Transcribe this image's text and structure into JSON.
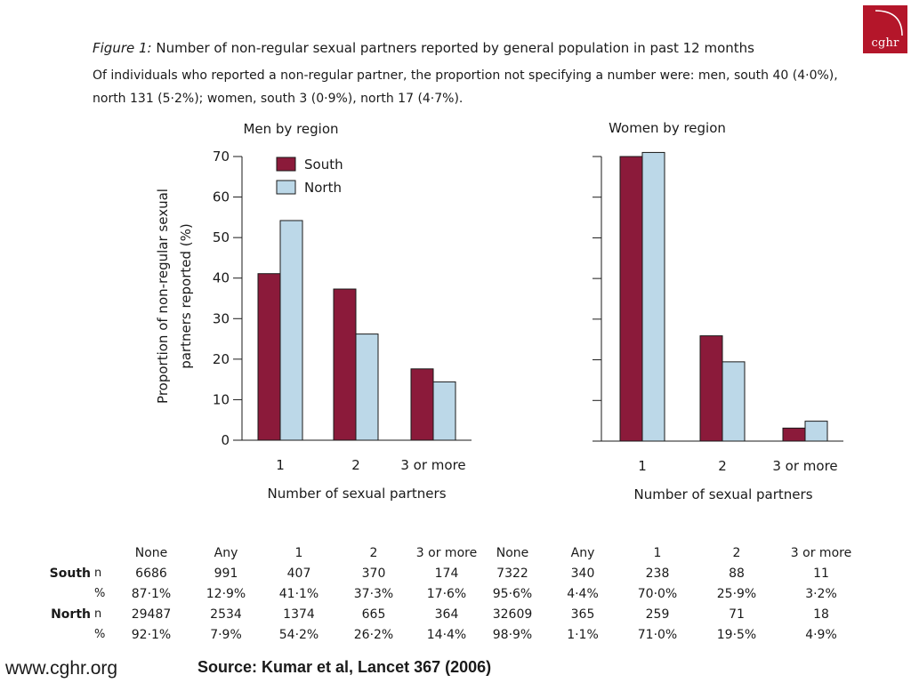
{
  "logo": {
    "text": "cghr"
  },
  "figure": {
    "label": "Figure 1:",
    "title": "Number of non-regular sexual partners reported by general population in past 12 months",
    "caption": "Of individuals who reported a non-regular partner, the proportion not specifying a number were: men, south 40 (4·0%), north 131 (5·2%); women, south 3 (0·9%), north 17 (4·7%)."
  },
  "chart_data": [
    {
      "type": "bar",
      "title": "Men by region",
      "xlabel": "Number of sexual partners",
      "ylabel": "Proportion of non-regular sexual partners reported (%)",
      "ylim": [
        0,
        70
      ],
      "yticks": [
        0,
        10,
        20,
        30,
        40,
        50,
        60,
        70
      ],
      "categories": [
        "1",
        "2",
        "3 or more"
      ],
      "legend": "top-left",
      "series": [
        {
          "name": "South",
          "color": "#8b1a3a",
          "values": [
            41.1,
            37.3,
            17.6
          ]
        },
        {
          "name": "North",
          "color": "#bcd8e8",
          "values": [
            54.2,
            26.2,
            14.4
          ]
        }
      ]
    },
    {
      "type": "bar",
      "title": "Women by region",
      "xlabel": "Number of sexual partners",
      "ylabel": "",
      "ylim": [
        0,
        70
      ],
      "yticks": [
        0,
        10,
        20,
        30,
        40,
        50,
        60,
        70
      ],
      "categories": [
        "1",
        "2",
        "3 or more"
      ],
      "series": [
        {
          "name": "South",
          "color": "#8b1a3a",
          "values": [
            70.0,
            25.9,
            3.2
          ]
        },
        {
          "name": "North",
          "color": "#bcd8e8",
          "values": [
            71.0,
            19.5,
            4.9
          ]
        }
      ]
    }
  ],
  "table": {
    "headers": [
      "None",
      "Any",
      "1",
      "2",
      "3 or more",
      "None",
      "Any",
      "1",
      "2",
      "3 or more"
    ],
    "rows": [
      {
        "region": "South",
        "marker": "n",
        "cells": [
          "6686",
          "991",
          "407",
          "370",
          "174",
          "7322",
          "340",
          "238",
          "88",
          "11"
        ]
      },
      {
        "region": "",
        "marker": "%",
        "cells": [
          "87·1%",
          "12·9%",
          "41·1%",
          "37·3%",
          "17·6%",
          "95·6%",
          "4·4%",
          "70·0%",
          "25·9%",
          "3·2%"
        ]
      },
      {
        "region": "North",
        "marker": "n",
        "cells": [
          "29487",
          "2534",
          "1374",
          "665",
          "364",
          "32609",
          "365",
          "259",
          "71",
          "18"
        ]
      },
      {
        "region": "",
        "marker": "%",
        "cells": [
          "92·1%",
          "7·9%",
          "54·2%",
          "26·2%",
          "14·4%",
          "98·9%",
          "1·1%",
          "71·0%",
          "19·5%",
          "4·9%"
        ]
      }
    ]
  },
  "footer": {
    "url": "www.cghr.org",
    "source": "Source: Kumar et al, Lancet 367 (2006)"
  }
}
